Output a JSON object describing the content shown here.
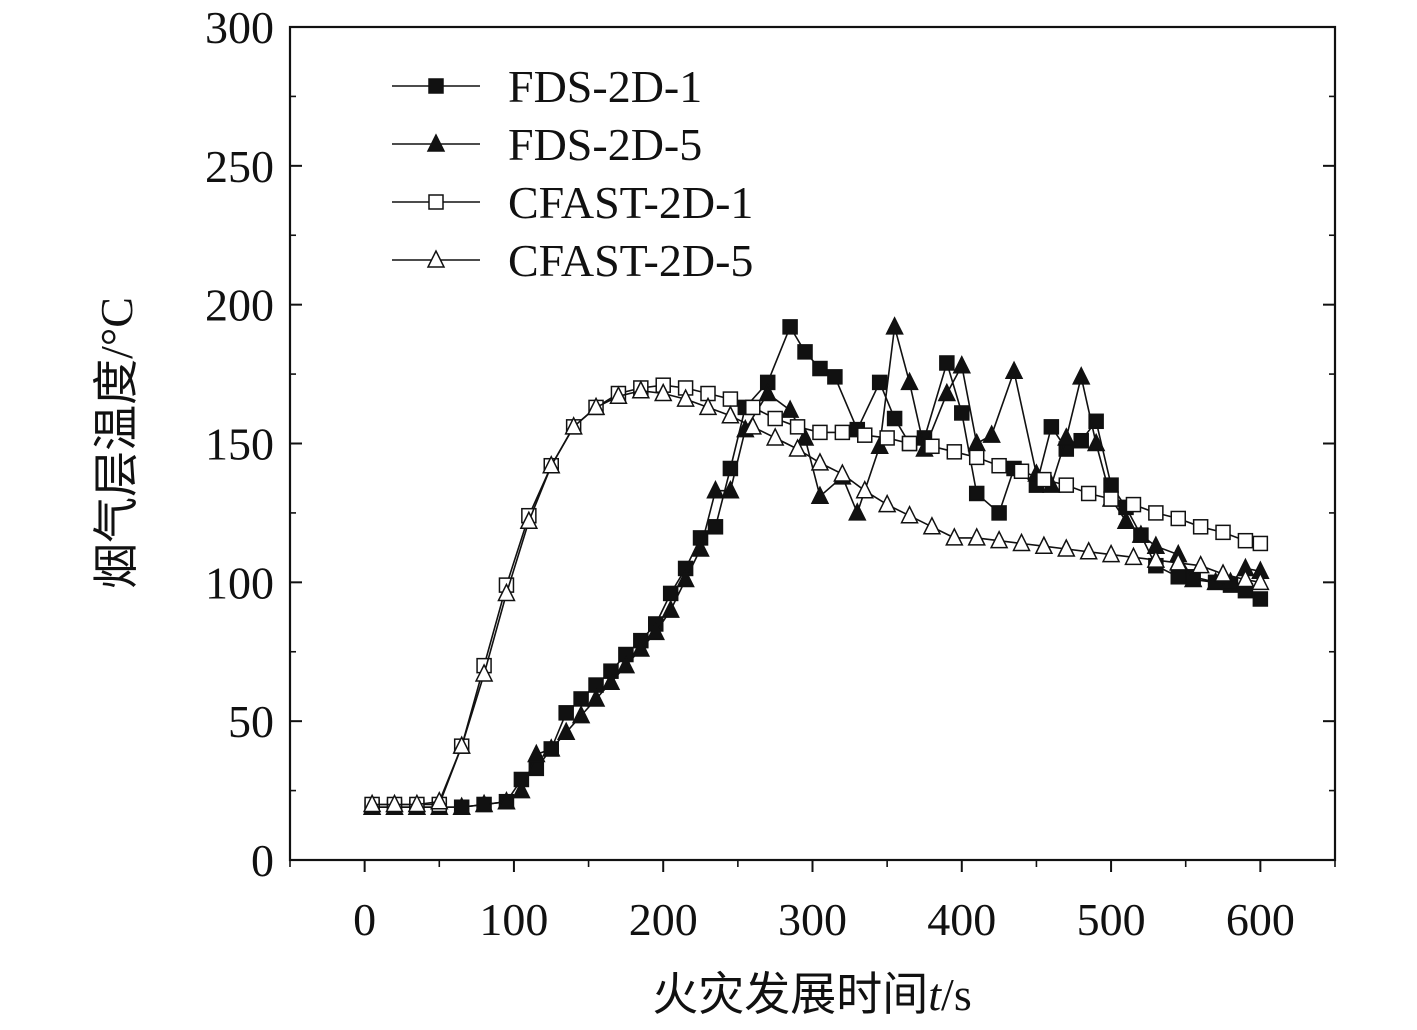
{
  "chart_data": {
    "type": "line",
    "title": "",
    "xlabel": "火灾发展时间t/s",
    "xlabel_parts": [
      "火灾发展时间",
      "t",
      "/s"
    ],
    "ylabel": "烟气层温度/°C",
    "xlim": [
      -50,
      650
    ],
    "ylim": [
      0,
      300
    ],
    "xticks": [
      0,
      100,
      200,
      300,
      400,
      500,
      600
    ],
    "yticks": [
      0,
      50,
      100,
      150,
      200,
      250,
      300
    ],
    "legend_position": "top-left",
    "colors": {
      "line": "#111111",
      "axis": "#111111",
      "background": "#ffffff"
    },
    "series": [
      {
        "name": "FDS-2D-1",
        "marker": "filled-square",
        "x": [
          5,
          20,
          35,
          50,
          65,
          80,
          95,
          105,
          115,
          125,
          135,
          145,
          155,
          165,
          175,
          185,
          195,
          205,
          215,
          225,
          235,
          245,
          255,
          270,
          285,
          295,
          305,
          315,
          330,
          345,
          355,
          365,
          375,
          390,
          400,
          410,
          425,
          435,
          450,
          460,
          470,
          480,
          490,
          500,
          510,
          520,
          530,
          545,
          555,
          570,
          580,
          590,
          600
        ],
        "y": [
          19,
          19,
          19,
          19,
          19,
          20,
          21,
          29,
          33,
          40,
          53,
          58,
          63,
          68,
          74,
          79,
          85,
          96,
          105,
          116,
          120,
          141,
          163,
          172,
          192,
          183,
          177,
          174,
          155,
          172,
          159,
          150,
          152,
          179,
          161,
          132,
          125,
          141,
          135,
          156,
          148,
          151,
          158,
          135,
          127,
          117,
          106,
          102,
          102,
          100,
          99,
          97,
          94
        ]
      },
      {
        "name": "FDS-2D-5",
        "marker": "filled-triangle",
        "x": [
          5,
          20,
          35,
          50,
          65,
          80,
          95,
          105,
          115,
          125,
          135,
          145,
          155,
          165,
          175,
          185,
          195,
          205,
          215,
          225,
          235,
          245,
          255,
          270,
          285,
          295,
          305,
          320,
          330,
          345,
          355,
          365,
          375,
          390,
          400,
          410,
          420,
          435,
          450,
          460,
          470,
          480,
          490,
          500,
          510,
          520,
          530,
          545,
          555,
          570,
          580,
          590,
          600
        ],
        "y": [
          19,
          19,
          19,
          19,
          19,
          20,
          21,
          25,
          38,
          40,
          46,
          52,
          58,
          64,
          70,
          76,
          82,
          90,
          101,
          112,
          133,
          133,
          155,
          168,
          162,
          152,
          131,
          138,
          125,
          149,
          192,
          172,
          148,
          168,
          178,
          150,
          153,
          176,
          139,
          135,
          152,
          174,
          150,
          130,
          122,
          117,
          113,
          110,
          101,
          100,
          100,
          105,
          104
        ]
      },
      {
        "name": "CFAST-2D-1",
        "marker": "open-square",
        "x": [
          5,
          20,
          35,
          50,
          65,
          80,
          95,
          110,
          125,
          140,
          155,
          170,
          185,
          200,
          215,
          230,
          245,
          260,
          275,
          290,
          305,
          320,
          335,
          350,
          365,
          380,
          395,
          410,
          425,
          440,
          455,
          470,
          485,
          500,
          515,
          530,
          545,
          560,
          575,
          590,
          600
        ],
        "y": [
          20,
          20,
          20,
          20,
          41,
          70,
          99,
          124,
          142,
          156,
          163,
          168,
          170,
          171,
          170,
          168,
          166,
          163,
          159,
          156,
          154,
          154,
          153,
          152,
          150,
          149,
          147,
          145,
          142,
          140,
          137,
          135,
          132,
          130,
          128,
          125,
          123,
          120,
          118,
          115,
          114
        ]
      },
      {
        "name": "CFAST-2D-5",
        "marker": "open-triangle",
        "x": [
          5,
          20,
          35,
          50,
          65,
          80,
          95,
          110,
          125,
          140,
          155,
          170,
          185,
          200,
          215,
          230,
          245,
          260,
          275,
          290,
          305,
          320,
          335,
          350,
          365,
          380,
          395,
          410,
          425,
          440,
          455,
          470,
          485,
          500,
          515,
          530,
          545,
          560,
          575,
          590,
          600
        ],
        "y": [
          20,
          20,
          20,
          21,
          41,
          67,
          96,
          122,
          142,
          156,
          163,
          167,
          169,
          168,
          166,
          163,
          160,
          156,
          152,
          148,
          143,
          139,
          133,
          128,
          124,
          120,
          116,
          116,
          115,
          114,
          113,
          112,
          111,
          110,
          109,
          108,
          107,
          106,
          103,
          101,
          100
        ]
      }
    ]
  }
}
